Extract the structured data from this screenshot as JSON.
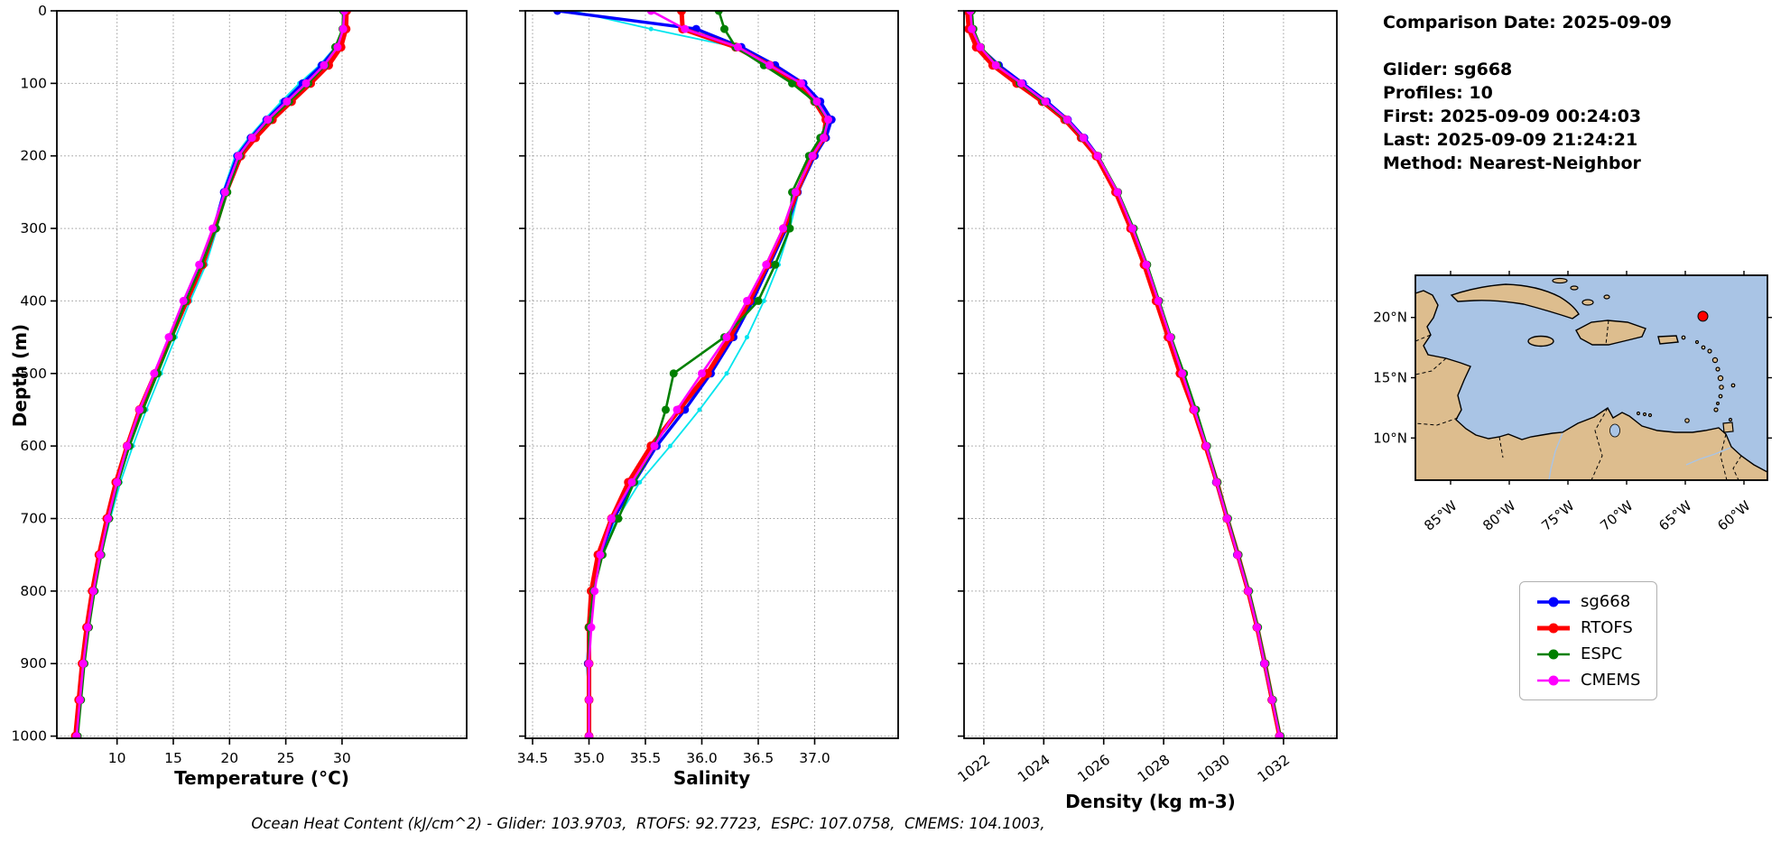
{
  "info_panel": {
    "comparison_date": "Comparison Date: 2025-09-09",
    "glider": "Glider: sg668",
    "profiles": "Profiles: 10",
    "first": "First: 2025-09-09 00:24:03",
    "last": "Last: 2025-09-09 21:24:21",
    "method": "Method: Nearest-Neighbor"
  },
  "footer": {
    "caption": "Ocean Heat Content (kJ/cm^2) - Glider: 103.9703,  RTOFS: 92.7723,  ESPC: 107.0758,  CMEMS: 104.1003,"
  },
  "legend": {
    "entries": [
      {
        "label": "sg668",
        "color": "#0000FF",
        "lw": 3.4
      },
      {
        "label": "RTOFS",
        "color": "#FF0000",
        "lw": 5
      },
      {
        "label": "ESPC",
        "color": "#008000",
        "lw": 2.6
      },
      {
        "label": "CMEMS",
        "color": "#FF00FF",
        "lw": 2.6
      }
    ]
  },
  "map": {
    "extent": {
      "lon": [
        -88,
        -58
      ],
      "lat": [
        6.5,
        23.5
      ]
    },
    "xticks": [
      {
        "v": -85,
        "label": "85°W"
      },
      {
        "v": -80,
        "label": "80°W"
      },
      {
        "v": -75,
        "label": "75°W"
      },
      {
        "v": -70,
        "label": "70°W"
      },
      {
        "v": -65,
        "label": "65°W"
      },
      {
        "v": -60,
        "label": "60°W"
      }
    ],
    "yticks": [
      {
        "v": 20,
        "label": "20°N"
      },
      {
        "v": 15,
        "label": "15°N"
      },
      {
        "v": 10,
        "label": "10°N"
      }
    ],
    "marker": {
      "lon": -63.5,
      "lat": 20.1,
      "color": "#FF0000"
    },
    "ocean_color": "#a9c4e5",
    "land_color": "#ddbd8e"
  },
  "chart_data": [
    {
      "id": "temperature",
      "type": "line",
      "title": "",
      "xlabel": "Temperature (°C)",
      "ylabel": "Depth (m)",
      "xlim": [
        4.65,
        41.08
      ],
      "ylim": [
        0,
        1003
      ],
      "y_inverted": true,
      "grid": true,
      "xticks": [
        10,
        15,
        20,
        25,
        30
      ],
      "xtick_labels": [
        "10",
        "15",
        "20",
        "25",
        "30"
      ],
      "xtick_rotation": 0,
      "yticks": [
        0,
        100,
        200,
        300,
        400,
        500,
        600,
        700,
        800,
        900,
        1000
      ],
      "ytick_labels": [
        "0",
        "100",
        "200",
        "300",
        "400",
        "500",
        "600",
        "700",
        "800",
        "900",
        "1000"
      ],
      "show_ytick_labels": true,
      "depths": [
        0,
        25,
        50,
        75,
        100,
        125,
        150,
        175,
        200,
        250,
        300,
        350,
        400,
        450,
        500,
        550,
        600,
        650,
        700,
        750,
        800,
        850,
        900,
        950,
        1000
      ],
      "series": [
        {
          "name": "sg668 raw (unlabeled)",
          "color": "#00E5EE",
          "lw": 1.8,
          "marker_r": 2.5,
          "values": [
            30.3,
            30.15,
            29.4,
            28.0,
            26.2,
            24.6,
            23.1,
            21.7,
            20.5,
            19.4,
            18.9,
            17.9,
            16.5,
            15.2,
            13.9,
            12.6,
            11.4,
            10.3,
            9.4,
            8.6,
            8.0,
            7.5,
            7.0,
            6.7,
            6.4
          ]
        },
        {
          "name": "sg668",
          "color": "#0000FF",
          "lw": 3.4,
          "marker_r": 4.5,
          "values": [
            30.3,
            30.2,
            29.5,
            28.2,
            26.5,
            24.9,
            23.3,
            21.9,
            20.7,
            19.5,
            18.6,
            17.4,
            16.0,
            14.7,
            13.4,
            12.1,
            11.0,
            10.0,
            9.2,
            8.5,
            7.9,
            7.4,
            7.0,
            6.7,
            6.4
          ]
        },
        {
          "name": "RTOFS",
          "color": "#FF0000",
          "lw": 5,
          "marker_r": 5,
          "values": [
            30.4,
            30.35,
            29.9,
            28.8,
            27.2,
            25.5,
            23.8,
            22.3,
            21.0,
            19.7,
            18.7,
            17.6,
            16.2,
            14.8,
            13.4,
            12.0,
            10.9,
            9.9,
            9.1,
            8.4,
            7.8,
            7.3,
            6.9,
            6.6,
            6.3
          ]
        },
        {
          "name": "ESPC",
          "color": "#008000",
          "lw": 2.6,
          "marker_r": 4.5,
          "values": [
            30.1,
            30.05,
            29.4,
            28.5,
            27.0,
            25.3,
            23.6,
            22.0,
            20.9,
            19.8,
            18.8,
            17.5,
            16.1,
            14.9,
            13.6,
            12.3,
            11.1,
            10.1,
            9.3,
            8.6,
            8.0,
            7.5,
            7.1,
            6.8,
            6.5
          ]
        },
        {
          "name": "CMEMS",
          "color": "#FF00FF",
          "lw": 2.6,
          "marker_r": 4.5,
          "values": [
            30.2,
            30.1,
            29.6,
            28.4,
            26.8,
            25.1,
            23.4,
            22.0,
            20.8,
            19.6,
            18.5,
            17.3,
            15.9,
            14.6,
            13.3,
            12.0,
            10.9,
            10.0,
            9.2,
            8.5,
            7.9,
            7.4,
            7.0,
            6.7,
            6.4
          ]
        }
      ]
    },
    {
      "id": "salinity",
      "type": "line",
      "title": "",
      "xlabel": "Salinity",
      "ylabel": "",
      "xlim": [
        34.436,
        37.74
      ],
      "ylim": [
        0,
        1003
      ],
      "y_inverted": true,
      "grid": true,
      "xticks": [
        34.5,
        35.0,
        35.5,
        36.0,
        36.5,
        37.0
      ],
      "xtick_labels": [
        "34.5",
        "35.0",
        "35.5",
        "36.0",
        "36.5",
        "37.0"
      ],
      "xtick_rotation": 0,
      "yticks": [
        0,
        100,
        200,
        300,
        400,
        500,
        600,
        700,
        800,
        900,
        1000
      ],
      "ytick_labels": [
        "0",
        "100",
        "200",
        "300",
        "400",
        "500",
        "600",
        "700",
        "800",
        "900",
        "1000"
      ],
      "show_ytick_labels": false,
      "depths": [
        0,
        25,
        50,
        75,
        100,
        125,
        150,
        175,
        200,
        250,
        300,
        350,
        400,
        450,
        500,
        550,
        600,
        650,
        700,
        750,
        800,
        850,
        900,
        950,
        1000
      ],
      "series": [
        {
          "name": "sg668 raw (unlabeled)",
          "color": "#00E5EE",
          "lw": 1.8,
          "marker_r": 2.5,
          "values": [
            34.85,
            35.55,
            36.3,
            36.62,
            36.88,
            37.03,
            37.13,
            37.08,
            36.98,
            36.86,
            36.78,
            36.68,
            36.55,
            36.4,
            36.22,
            35.98,
            35.72,
            35.45,
            35.25,
            35.1,
            35.02,
            35.0,
            34.98,
            35.0,
            35.0
          ]
        },
        {
          "name": "sg668",
          "color": "#0000FF",
          "lw": 3.4,
          "marker_r": 4.5,
          "values": [
            34.72,
            35.95,
            36.35,
            36.65,
            36.9,
            37.05,
            37.15,
            37.1,
            37.0,
            36.85,
            36.75,
            36.6,
            36.45,
            36.28,
            36.08,
            35.85,
            35.6,
            35.4,
            35.22,
            35.1,
            35.03,
            35.0,
            34.99,
            35.0,
            35.0
          ]
        },
        {
          "name": "RTOFS",
          "color": "#FF0000",
          "lw": 5,
          "marker_r": 5,
          "values": [
            35.82,
            35.83,
            36.3,
            36.6,
            36.85,
            37.0,
            37.1,
            37.08,
            36.98,
            36.84,
            36.73,
            36.58,
            36.42,
            36.25,
            36.05,
            35.8,
            35.55,
            35.35,
            35.2,
            35.08,
            35.02,
            35.0,
            35.0,
            35.0,
            35.0
          ]
        },
        {
          "name": "ESPC",
          "color": "#008000",
          "lw": 2.6,
          "marker_r": 4.5,
          "values": [
            36.15,
            36.2,
            36.3,
            36.55,
            36.8,
            37.0,
            37.12,
            37.05,
            36.95,
            36.8,
            36.78,
            36.65,
            36.5,
            36.2,
            35.75,
            35.68,
            35.58,
            35.4,
            35.26,
            35.12,
            35.04,
            35.0,
            35.0,
            35.0,
            35.0
          ]
        },
        {
          "name": "CMEMS",
          "color": "#FF00FF",
          "lw": 2.6,
          "marker_r": 4.5,
          "values": [
            35.55,
            35.85,
            36.32,
            36.6,
            36.88,
            37.02,
            37.12,
            37.08,
            36.98,
            36.83,
            36.72,
            36.57,
            36.4,
            36.22,
            36.0,
            35.78,
            35.58,
            35.38,
            35.2,
            35.1,
            35.05,
            35.02,
            35.0,
            35.0,
            35.0
          ]
        }
      ]
    },
    {
      "id": "density",
      "type": "line",
      "title": "",
      "xlabel": "Density (kg m-3)",
      "ylabel": "",
      "xlim": [
        1021.34,
        1033.78
      ],
      "ylim": [
        0,
        1003
      ],
      "y_inverted": true,
      "grid": true,
      "xticks": [
        1022,
        1024,
        1026,
        1028,
        1030,
        1032
      ],
      "xtick_labels": [
        "1022",
        "1024",
        "1026",
        "1028",
        "1030",
        "1032"
      ],
      "xtick_rotation": 36,
      "yticks": [
        0,
        100,
        200,
        300,
        400,
        500,
        600,
        700,
        800,
        900,
        1000
      ],
      "ytick_labels": [
        "0",
        "100",
        "200",
        "300",
        "400",
        "500",
        "600",
        "700",
        "800",
        "900",
        "1000"
      ],
      "show_ytick_labels": false,
      "depths": [
        0,
        25,
        50,
        75,
        100,
        125,
        150,
        175,
        200,
        250,
        300,
        350,
        400,
        450,
        500,
        550,
        600,
        650,
        700,
        750,
        800,
        850,
        900,
        950,
        1000
      ],
      "series": [
        {
          "name": "sg668",
          "color": "#0000FF",
          "lw": 3.4,
          "marker_r": 4.5,
          "values": [
            1021.5,
            1021.55,
            1021.85,
            1022.5,
            1023.3,
            1024.1,
            1024.8,
            1025.35,
            1025.8,
            1026.45,
            1026.95,
            1027.4,
            1027.8,
            1028.2,
            1028.6,
            1029.0,
            1029.4,
            1029.75,
            1030.1,
            1030.45,
            1030.8,
            1031.1,
            1031.35,
            1031.6,
            1031.85
          ]
        },
        {
          "name": "RTOFS",
          "color": "#FF0000",
          "lw": 5,
          "marker_r": 5,
          "values": [
            1021.45,
            1021.5,
            1021.75,
            1022.3,
            1023.1,
            1023.95,
            1024.7,
            1025.25,
            1025.75,
            1026.4,
            1026.9,
            1027.35,
            1027.75,
            1028.15,
            1028.55,
            1029.0,
            1029.4,
            1029.78,
            1030.12,
            1030.48,
            1030.82,
            1031.12,
            1031.38,
            1031.62,
            1031.87
          ]
        },
        {
          "name": "ESPC",
          "color": "#008000",
          "lw": 2.6,
          "marker_r": 4.5,
          "values": [
            1021.6,
            1021.65,
            1021.9,
            1022.45,
            1023.2,
            1024.0,
            1024.75,
            1025.3,
            1025.82,
            1026.48,
            1027.0,
            1027.45,
            1027.85,
            1028.25,
            1028.68,
            1029.08,
            1029.45,
            1029.8,
            1030.15,
            1030.5,
            1030.85,
            1031.15,
            1031.4,
            1031.65,
            1031.9
          ]
        },
        {
          "name": "CMEMS",
          "color": "#FF00FF",
          "lw": 2.6,
          "marker_r": 4.5,
          "values": [
            1021.55,
            1021.6,
            1021.88,
            1022.4,
            1023.25,
            1024.05,
            1024.78,
            1025.32,
            1025.8,
            1026.46,
            1026.96,
            1027.42,
            1027.82,
            1028.22,
            1028.62,
            1029.02,
            1029.42,
            1029.77,
            1030.12,
            1030.47,
            1030.82,
            1031.12,
            1031.37,
            1031.62,
            1031.87
          ]
        }
      ]
    }
  ]
}
